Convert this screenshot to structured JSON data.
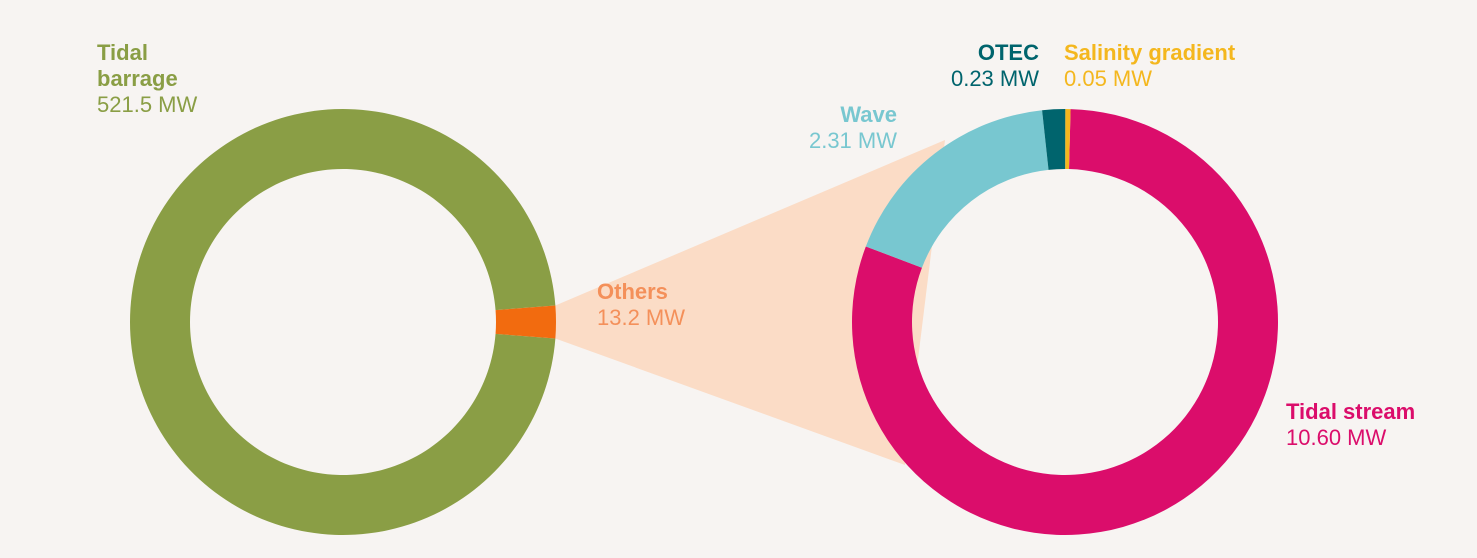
{
  "colors": {
    "background": "#f7f4f2",
    "connector": "#fbdcc6"
  },
  "chart_data": [
    {
      "type": "donut",
      "title": "",
      "slices": [
        {
          "key": "tidal-barrage",
          "name": "Tidal\nbarrage",
          "value": 521.5,
          "value_label": "521.5 MW",
          "color": "#8a9e45"
        },
        {
          "key": "others",
          "name": "Others",
          "value": 13.2,
          "value_label": "13.2 MW",
          "color": "#f26b0f"
        }
      ]
    },
    {
      "type": "donut",
      "title": "",
      "slices": [
        {
          "key": "tidal-stream",
          "name": "Tidal stream",
          "value": 10.6,
          "value_label": "10.60 MW",
          "color": "#db0d6b"
        },
        {
          "key": "wave",
          "name": "Wave",
          "value": 2.31,
          "value_label": "2.31 MW",
          "color": "#78c7d0"
        },
        {
          "key": "otec",
          "name": "OTEC",
          "value": 0.23,
          "value_label": "0.23 MW",
          "color": "#00646d"
        },
        {
          "key": "salinity-gradient",
          "name": "Salinity gradient",
          "value": 0.05,
          "value_label": "0.05 MW",
          "color": "#f4b71e"
        }
      ]
    }
  ]
}
